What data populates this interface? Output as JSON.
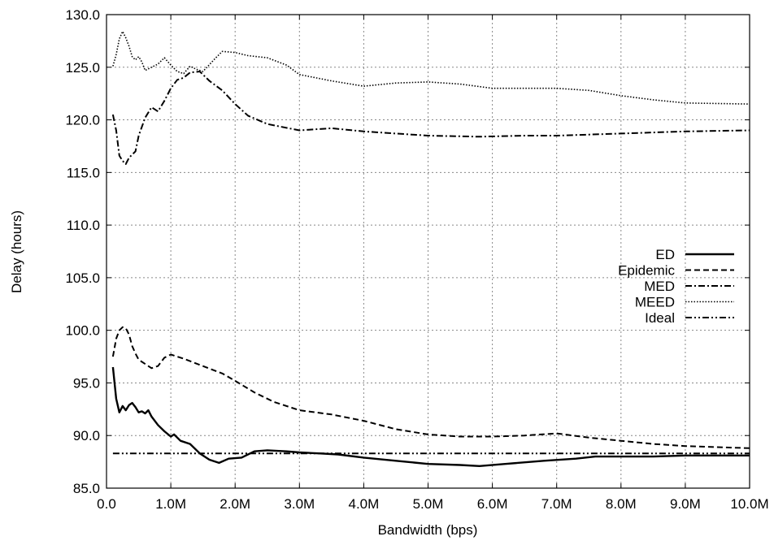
{
  "chart_data": {
    "type": "line",
    "title": "",
    "xlabel": "Bandwidth (bps)",
    "ylabel": "Delay (hours)",
    "xlim": [
      0,
      10000000
    ],
    "ylim": [
      85,
      130
    ],
    "grid": true,
    "legend_position": "right",
    "x_ticks": [
      {
        "value": 0,
        "label": "0.0"
      },
      {
        "value": 1000000,
        "label": "1.0M"
      },
      {
        "value": 2000000,
        "label": "2.0M"
      },
      {
        "value": 3000000,
        "label": "3.0M"
      },
      {
        "value": 4000000,
        "label": "4.0M"
      },
      {
        "value": 5000000,
        "label": "5.0M"
      },
      {
        "value": 6000000,
        "label": "6.0M"
      },
      {
        "value": 7000000,
        "label": "7.0M"
      },
      {
        "value": 8000000,
        "label": "8.0M"
      },
      {
        "value": 9000000,
        "label": "9.0M"
      },
      {
        "value": 10000000,
        "label": "10.0M"
      }
    ],
    "y_ticks": [
      {
        "value": 85,
        "label": "85.0"
      },
      {
        "value": 90,
        "label": "90.0"
      },
      {
        "value": 95,
        "label": "95.0"
      },
      {
        "value": 100,
        "label": "100.0"
      },
      {
        "value": 105,
        "label": "105.0"
      },
      {
        "value": 110,
        "label": "110.0"
      },
      {
        "value": 115,
        "label": "115.0"
      },
      {
        "value": 120,
        "label": "120.0"
      },
      {
        "value": 125,
        "label": "125.0"
      },
      {
        "value": 130,
        "label": "130.0"
      }
    ],
    "series": [
      {
        "name": "ED",
        "style": "solid",
        "points": [
          [
            100000,
            96.5
          ],
          [
            150000,
            93.5
          ],
          [
            200000,
            92.2
          ],
          [
            250000,
            92.8
          ],
          [
            300000,
            92.4
          ],
          [
            350000,
            92.9
          ],
          [
            400000,
            93.1
          ],
          [
            450000,
            92.7
          ],
          [
            500000,
            92.2
          ],
          [
            550000,
            92.3
          ],
          [
            600000,
            92.1
          ],
          [
            650000,
            92.4
          ],
          [
            700000,
            91.8
          ],
          [
            800000,
            91.0
          ],
          [
            900000,
            90.4
          ],
          [
            1000000,
            89.9
          ],
          [
            1050000,
            90.1
          ],
          [
            1150000,
            89.5
          ],
          [
            1300000,
            89.2
          ],
          [
            1450000,
            88.3
          ],
          [
            1600000,
            87.7
          ],
          [
            1750000,
            87.4
          ],
          [
            1900000,
            87.8
          ],
          [
            2100000,
            87.9
          ],
          [
            2300000,
            88.5
          ],
          [
            2500000,
            88.6
          ],
          [
            2800000,
            88.5
          ],
          [
            3000000,
            88.4
          ],
          [
            3300000,
            88.3
          ],
          [
            3600000,
            88.2
          ],
          [
            4000000,
            87.9
          ],
          [
            4500000,
            87.6
          ],
          [
            5000000,
            87.3
          ],
          [
            5500000,
            87.2
          ],
          [
            5800000,
            87.1
          ],
          [
            6200000,
            87.3
          ],
          [
            6800000,
            87.6
          ],
          [
            7300000,
            87.8
          ],
          [
            7600000,
            88.0
          ],
          [
            8500000,
            88.0
          ],
          [
            9000000,
            88.1
          ],
          [
            10000000,
            88.1
          ]
        ]
      },
      {
        "name": "Epidemic",
        "style": "dashed",
        "points": [
          [
            100000,
            97.5
          ],
          [
            150000,
            99.2
          ],
          [
            200000,
            100.0
          ],
          [
            250000,
            100.3
          ],
          [
            300000,
            100.2
          ],
          [
            350000,
            99.6
          ],
          [
            400000,
            98.5
          ],
          [
            450000,
            97.8
          ],
          [
            500000,
            97.2
          ],
          [
            600000,
            96.8
          ],
          [
            700000,
            96.4
          ],
          [
            800000,
            96.6
          ],
          [
            900000,
            97.4
          ],
          [
            1000000,
            97.7
          ],
          [
            1200000,
            97.3
          ],
          [
            1500000,
            96.6
          ],
          [
            1800000,
            95.9
          ],
          [
            2000000,
            95.2
          ],
          [
            2300000,
            94.1
          ],
          [
            2600000,
            93.2
          ],
          [
            3000000,
            92.4
          ],
          [
            3500000,
            92.0
          ],
          [
            4000000,
            91.4
          ],
          [
            4500000,
            90.6
          ],
          [
            5000000,
            90.1
          ],
          [
            5500000,
            89.9
          ],
          [
            6000000,
            89.9
          ],
          [
            6500000,
            90.0
          ],
          [
            7000000,
            90.2
          ],
          [
            7500000,
            89.8
          ],
          [
            8000000,
            89.5
          ],
          [
            8500000,
            89.2
          ],
          [
            9000000,
            89.0
          ],
          [
            10000000,
            88.8
          ]
        ]
      },
      {
        "name": "MED",
        "style": "dashdot",
        "points": [
          [
            100000,
            120.5
          ],
          [
            150000,
            119.0
          ],
          [
            200000,
            116.6
          ],
          [
            250000,
            116.1
          ],
          [
            300000,
            115.8
          ],
          [
            350000,
            116.4
          ],
          [
            400000,
            116.7
          ],
          [
            450000,
            117.0
          ],
          [
            500000,
            118.5
          ],
          [
            600000,
            120.2
          ],
          [
            700000,
            121.2
          ],
          [
            800000,
            120.8
          ],
          [
            900000,
            121.8
          ],
          [
            1000000,
            123.0
          ],
          [
            1100000,
            123.8
          ],
          [
            1200000,
            124.0
          ],
          [
            1300000,
            124.5
          ],
          [
            1450000,
            124.6
          ],
          [
            1600000,
            123.7
          ],
          [
            1800000,
            122.8
          ],
          [
            2000000,
            121.5
          ],
          [
            2200000,
            120.4
          ],
          [
            2500000,
            119.6
          ],
          [
            3000000,
            119.0
          ],
          [
            3500000,
            119.2
          ],
          [
            4000000,
            118.9
          ],
          [
            4500000,
            118.7
          ],
          [
            5000000,
            118.5
          ],
          [
            5800000,
            118.4
          ],
          [
            6500000,
            118.5
          ],
          [
            7000000,
            118.5
          ],
          [
            7500000,
            118.6
          ],
          [
            8000000,
            118.7
          ],
          [
            8500000,
            118.8
          ],
          [
            9000000,
            118.9
          ],
          [
            10000000,
            119.0
          ]
        ]
      },
      {
        "name": "MEED",
        "style": "dotted",
        "points": [
          [
            100000,
            125.1
          ],
          [
            150000,
            126.2
          ],
          [
            200000,
            127.7
          ],
          [
            250000,
            128.4
          ],
          [
            300000,
            127.8
          ],
          [
            350000,
            127.0
          ],
          [
            400000,
            126.0
          ],
          [
            450000,
            125.7
          ],
          [
            500000,
            126.0
          ],
          [
            550000,
            125.5
          ],
          [
            600000,
            124.7
          ],
          [
            700000,
            125.0
          ],
          [
            800000,
            125.3
          ],
          [
            900000,
            125.9
          ],
          [
            1000000,
            125.2
          ],
          [
            1100000,
            124.6
          ],
          [
            1200000,
            124.4
          ],
          [
            1300000,
            125.1
          ],
          [
            1400000,
            124.8
          ],
          [
            1500000,
            124.6
          ],
          [
            1700000,
            125.9
          ],
          [
            1800000,
            126.5
          ],
          [
            2000000,
            126.4
          ],
          [
            2200000,
            126.1
          ],
          [
            2500000,
            125.9
          ],
          [
            2800000,
            125.2
          ],
          [
            3000000,
            124.3
          ],
          [
            3500000,
            123.7
          ],
          [
            4000000,
            123.2
          ],
          [
            4500000,
            123.5
          ],
          [
            5000000,
            123.6
          ],
          [
            5500000,
            123.4
          ],
          [
            6000000,
            123.0
          ],
          [
            6500000,
            123.0
          ],
          [
            7000000,
            123.0
          ],
          [
            7500000,
            122.8
          ],
          [
            8000000,
            122.3
          ],
          [
            8500000,
            121.9
          ],
          [
            9000000,
            121.6
          ],
          [
            10000000,
            121.5
          ]
        ]
      },
      {
        "name": "Ideal",
        "style": "dashdotdot",
        "points": [
          [
            100000,
            88.3
          ],
          [
            10000000,
            88.3
          ]
        ]
      }
    ]
  }
}
